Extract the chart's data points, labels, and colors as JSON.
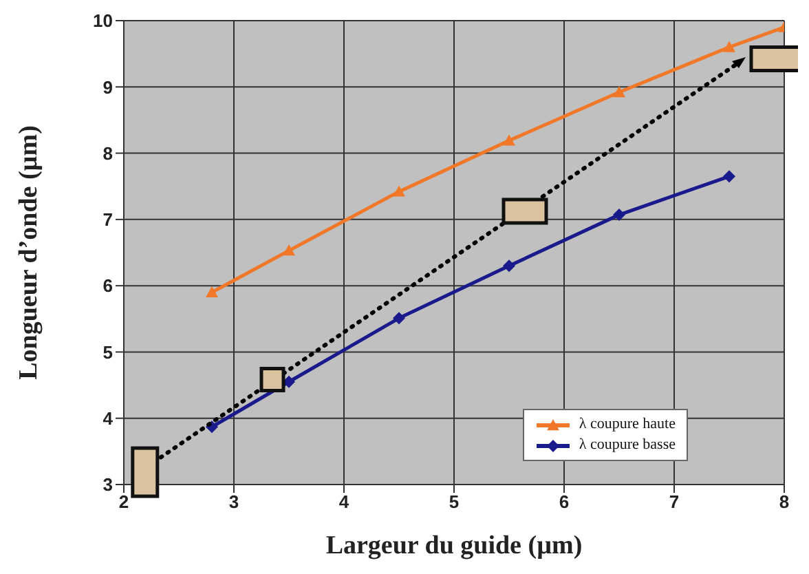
{
  "chart_data": {
    "type": "line",
    "xlabel": "Largeur du guide (µm)",
    "ylabel": "Longueur d’onde (µm)",
    "xlim": [
      2,
      8
    ],
    "xticks": [
      2,
      3,
      4,
      5,
      6,
      7,
      8
    ],
    "ylim": [
      3,
      10
    ],
    "yticks": [
      3,
      4,
      5,
      6,
      7,
      8,
      9,
      10
    ],
    "grid": true,
    "legend": "bottom right",
    "series": [
      {
        "name": "λ coupure haute",
        "color": "#f07828",
        "marker": "triangle",
        "x": [
          2.8,
          3.5,
          4.5,
          5.5,
          6.5,
          7.5,
          8
        ],
        "values": [
          5.9,
          6.53,
          7.42,
          8.19,
          8.92,
          9.6,
          9.9
        ]
      },
      {
        "name": "λ coupure basse",
        "color": "#1a1a8c",
        "marker": "diamond",
        "x": [
          2.8,
          3.5,
          4.5,
          5.5,
          6.5,
          7.5
        ],
        "values": [
          3.87,
          4.55,
          5.51,
          6.3,
          7.07,
          7.65
        ]
      }
    ]
  }
}
